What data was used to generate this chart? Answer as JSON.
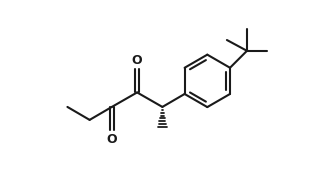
{
  "bg_color": "#ffffff",
  "line_color": "#1a1a1a",
  "line_width": 1.5,
  "figsize": [
    3.19,
    1.71
  ],
  "dpi": 100
}
